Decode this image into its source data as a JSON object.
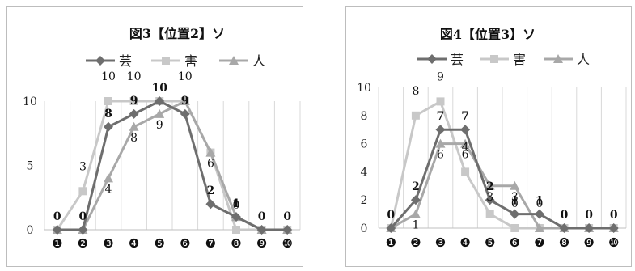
{
  "chart_data": [
    {
      "type": "line",
      "title": "図3【位置2】ソ",
      "categories": [
        "❶",
        "❷",
        "❸",
        "❹",
        "❺",
        "❻",
        "❼",
        "❽",
        "❾",
        "❿"
      ],
      "ylim": [
        0,
        10
      ],
      "yticks": [
        "0",
        "5",
        "10"
      ],
      "grid": true,
      "legend": "top",
      "series": [
        {
          "name": "芸",
          "color": "#6e6e6e",
          "marker": "diamond",
          "values": [
            0,
            0,
            8,
            9,
            10,
            9,
            2,
            1,
            0,
            0
          ],
          "labels": [
            "0",
            "0",
            "8",
            "9",
            "10",
            "9",
            "2",
            "1",
            "0",
            "0"
          ]
        },
        {
          "name": "害",
          "color": "#c8c8c8",
          "marker": "square",
          "values": [
            0,
            3,
            10,
            10,
            10,
            10,
            6,
            0,
            0,
            0
          ],
          "labels": [
            "",
            "3",
            "10",
            "10",
            "",
            "10",
            "",
            "0",
            "",
            ""
          ]
        },
        {
          "name": "人",
          "color": "#a8a8a8",
          "marker": "triangle",
          "values": [
            0,
            0,
            4,
            8,
            9,
            10,
            6,
            1,
            0,
            0
          ],
          "labels": [
            "",
            "",
            "4",
            "8",
            "9",
            "",
            "6",
            "",
            "",
            ""
          ]
        }
      ]
    },
    {
      "type": "line",
      "title": "図4【位置3】ソ",
      "categories": [
        "❶",
        "❷",
        "❸",
        "❹",
        "❺",
        "❻",
        "❼",
        "❽",
        "❾",
        "❿"
      ],
      "ylim": [
        0,
        10
      ],
      "yticks": [
        "0",
        "2",
        "4",
        "6",
        "8",
        "10"
      ],
      "grid": true,
      "legend": "top",
      "series": [
        {
          "name": "芸",
          "color": "#6e6e6e",
          "marker": "diamond",
          "values": [
            0,
            2,
            7,
            7,
            2,
            1,
            1,
            0,
            0,
            0
          ],
          "labels": [
            "0",
            "2",
            "7",
            "7",
            "2",
            "1",
            "1",
            "0",
            "0",
            "0"
          ]
        },
        {
          "name": "害",
          "color": "#c8c8c8",
          "marker": "square",
          "values": [
            0,
            8,
            9,
            4,
            1,
            0,
            0,
            0,
            0,
            0
          ],
          "labels": [
            "",
            "8",
            "9",
            "4",
            "",
            "0",
            "0",
            "",
            "",
            ""
          ]
        },
        {
          "name": "人",
          "color": "#a8a8a8",
          "marker": "triangle",
          "values": [
            0,
            1,
            6,
            6,
            3,
            3,
            0,
            0,
            0,
            0
          ],
          "labels": [
            "",
            "1",
            "6",
            "6",
            "3",
            "3",
            "",
            "",
            "",
            ""
          ]
        }
      ]
    }
  ]
}
